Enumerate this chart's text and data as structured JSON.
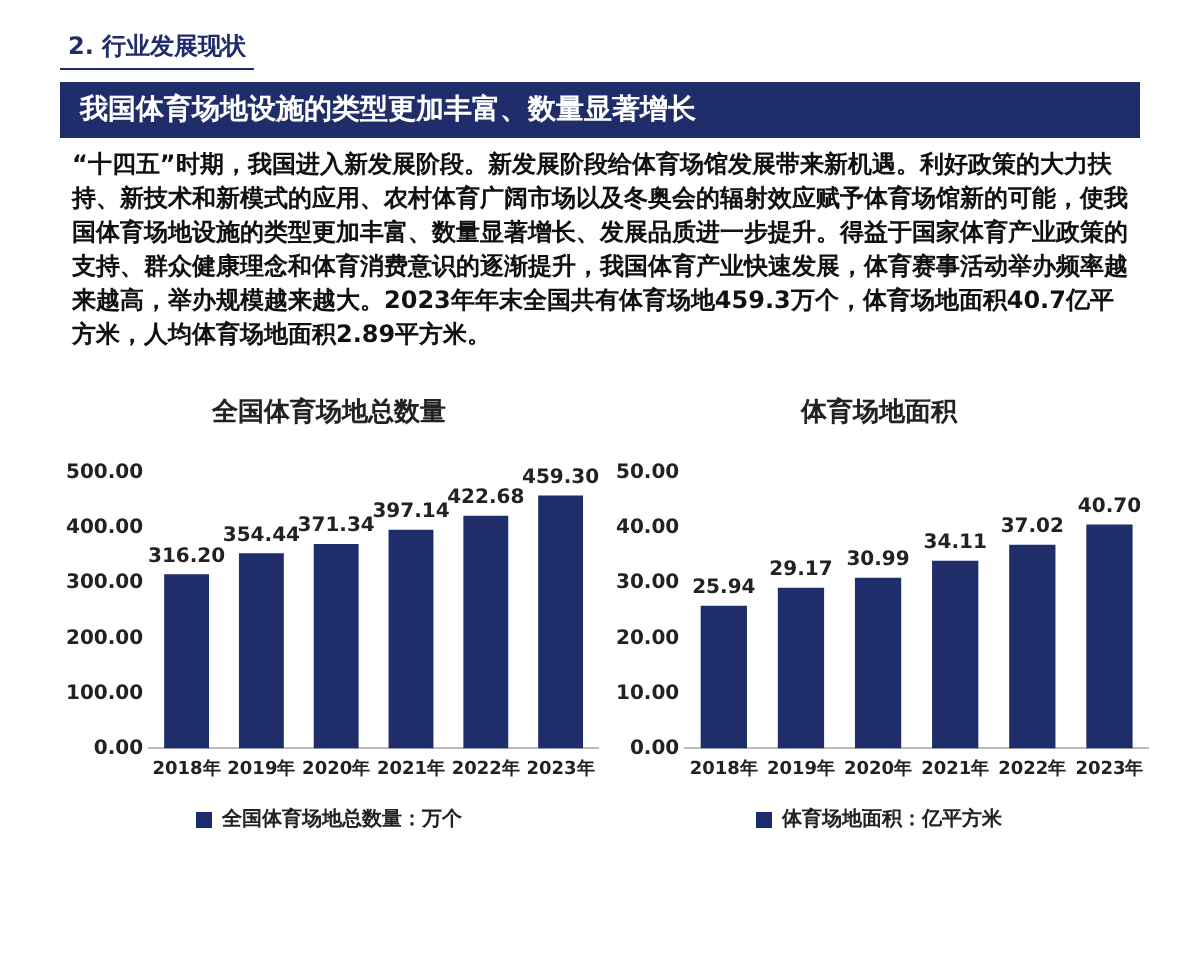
{
  "chart_data": [
    {
      "type": "other",
      "title": "2. 行业发展现状",
      "subtitle": "我国体育场地设施的类型更加丰富、数量显著增长",
      "annotations": [
        "“十四五”时期，我国进入新发展阶段。新发展阶段给体育场馆发展带来新机遇。利好政策的大力扶持、新技术和新模式的应用、农村体育广阔市场以及冬奥会的辐射效应赋予体育场馆新的可能，使我国体育场地设施的类型更加丰富、数量显著增长、发展品质进一步提升。得益于国家体育产业政策的支持、群众健康理念和体育消费意识的逐渐提升，我国体育产业快速发展，体育赛事活动举办频率越来越高，举办规模越来越大。2023年年末全国共有体育场地459.3万个，体育场地面积40.7亿平方米，人均体育场地面积2.89平方米。"
      ]
    },
    {
      "type": "bar",
      "title": "全国体育场地总数量",
      "categories": [
        "2018年",
        "2019年",
        "2020年",
        "2021年",
        "2022年",
        "2023年"
      ],
      "series": [
        {
          "name": "全国体育场地总数量：万个",
          "color": "#1f2d6b",
          "values": [
            316.2,
            354.44,
            371.34,
            397.14,
            422.68,
            459.3
          ],
          "value_labels": [
            "316.20",
            "354.44",
            "371.34",
            "397.14",
            "422.68",
            "459.30"
          ]
        }
      ],
      "ylim": [
        0,
        500
      ],
      "yticks": [
        {
          "value": 0,
          "label": "0.00"
        },
        {
          "value": 100,
          "label": "100.00"
        },
        {
          "value": 200,
          "label": "200.00"
        },
        {
          "value": 300,
          "label": "300.00"
        },
        {
          "value": 400,
          "label": "400.00"
        },
        {
          "value": 500,
          "label": "500.00"
        }
      ],
      "legend": "bottom",
      "grid": false
    },
    {
      "type": "bar",
      "title": "体育场地面积",
      "categories": [
        "2018年",
        "2019年",
        "2020年",
        "2021年",
        "2022年",
        "2023年"
      ],
      "series": [
        {
          "name": "体育场地面积：亿平方米",
          "color": "#1f2d6b",
          "values": [
            25.94,
            29.17,
            30.99,
            34.11,
            37.02,
            40.7
          ],
          "value_labels": [
            "25.94",
            "29.17",
            "30.99",
            "34.11",
            "37.02",
            "40.70"
          ]
        }
      ],
      "ylim": [
        0,
        50
      ],
      "yticks": [
        {
          "value": 0,
          "label": "0.00"
        },
        {
          "value": 10,
          "label": "10.00"
        },
        {
          "value": 20,
          "label": "20.00"
        },
        {
          "value": 30,
          "label": "30.00"
        },
        {
          "value": 40,
          "label": "40.00"
        },
        {
          "value": 50,
          "label": "50.00"
        }
      ],
      "legend": "bottom",
      "grid": false
    }
  ]
}
